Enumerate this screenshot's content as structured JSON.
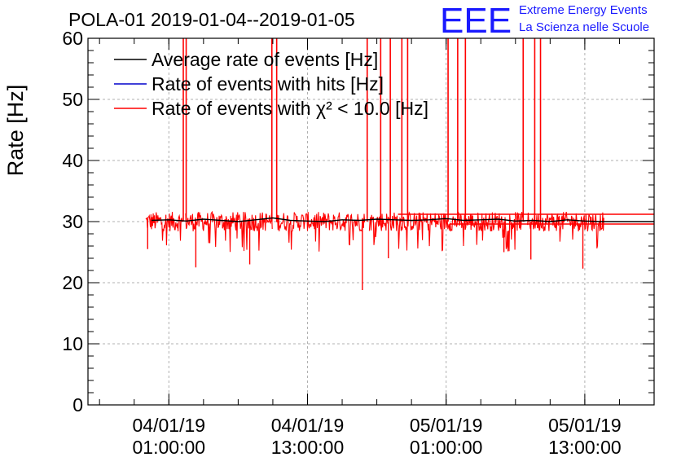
{
  "chart_data": {
    "type": "line",
    "title": "POLA-01 2019-01-04--2019-01-05",
    "ylabel": "Rate [Hz]",
    "xlabel": "",
    "ylim": [
      0,
      60
    ],
    "yticks": [
      "0",
      "10",
      "20",
      "30",
      "40",
      "50",
      "60"
    ],
    "xticks": [
      {
        "value": "2019-01-04T01:00:00",
        "line1": "04/01/19",
        "line2": "01:00:00"
      },
      {
        "value": "2019-01-04T13:00:00",
        "line1": "04/01/19",
        "line2": "13:00:00"
      },
      {
        "value": "2019-01-05T01:00:00",
        "line1": "05/01/19",
        "line2": "01:00:00"
      },
      {
        "value": "2019-01-05T13:00:00",
        "line1": "05/01/19",
        "line2": "13:00:00"
      }
    ],
    "xlim": [
      "2019-01-03T18:00:00",
      "2019-01-05T19:00:00"
    ],
    "grid": true,
    "legend_position": "top-left",
    "series": [
      {
        "name": "Average rate of events [Hz]",
        "color": "#000000",
        "points": [
          [
            "2019-01-03T23:30:00",
            30.2
          ],
          [
            "2019-01-04T01:00:00",
            30.3
          ],
          [
            "2019-01-04T02:30:00",
            30.1
          ],
          [
            "2019-01-04T04:00:00",
            30.4
          ],
          [
            "2019-01-04T05:30:00",
            30.2
          ],
          [
            "2019-01-04T07:00:00",
            30.0
          ],
          [
            "2019-01-04T08:30:00",
            30.3
          ],
          [
            "2019-01-04T10:00:00",
            30.6
          ],
          [
            "2019-01-04T11:30:00",
            30.2
          ],
          [
            "2019-01-04T13:00:00",
            30.1
          ],
          [
            "2019-01-04T14:30:00",
            30.0
          ],
          [
            "2019-01-04T16:00:00",
            30.3
          ],
          [
            "2019-01-04T17:30:00",
            30.2
          ],
          [
            "2019-01-04T19:00:00",
            30.4
          ],
          [
            "2019-01-04T20:30:00",
            30.3
          ],
          [
            "2019-01-04T22:00:00",
            30.2
          ],
          [
            "2019-01-04T23:30:00",
            30.3
          ],
          [
            "2019-01-05T01:00:00",
            30.5
          ],
          [
            "2019-01-05T02:30:00",
            30.2
          ],
          [
            "2019-01-05T04:00:00",
            30.3
          ],
          [
            "2019-01-05T05:30:00",
            30.4
          ],
          [
            "2019-01-05T07:00:00",
            30.1
          ],
          [
            "2019-01-05T08:30:00",
            30.2
          ],
          [
            "2019-01-05T10:00:00",
            30.0
          ],
          [
            "2019-01-05T11:30:00",
            30.3
          ],
          [
            "2019-01-05T13:00:00",
            30.1
          ],
          [
            "2019-01-05T14:30:00",
            30.0
          ],
          [
            "2019-01-05T19:00:00",
            30.0
          ]
        ]
      },
      {
        "name": "Rate of events with hits [Hz]",
        "color": "#0000cc",
        "points": []
      },
      {
        "name": "Rate of events with χ² < 10.0 [Hz]",
        "color": "#ff0000",
        "baseline": 30.0,
        "noise": 1.6,
        "start": "2019-01-03T23:00:00",
        "end": "2019-01-05T14:40:00",
        "gaps": [
          [
            "2019-01-04T02:10:00",
            "2019-01-04T02:25:00"
          ],
          [
            "2019-01-04T10:00:00",
            "2019-01-04T10:15:00"
          ],
          [
            "2019-01-04T18:00:00",
            "2019-01-04T18:20:00"
          ],
          [
            "2019-01-05T07:40:00",
            "2019-01-05T08:00:00"
          ]
        ],
        "dips": [
          [
            "2019-01-03T23:10:00",
            25.5
          ],
          [
            "2019-01-04T03:20:00",
            22.5
          ],
          [
            "2019-01-04T08:00:00",
            23.0
          ],
          [
            "2019-01-04T17:45:00",
            18.8
          ],
          [
            "2019-01-04T20:00:00",
            24.0
          ],
          [
            "2019-01-05T06:00:00",
            25.0
          ],
          [
            "2019-01-05T08:20:00",
            23.8
          ],
          [
            "2019-01-05T12:50:00",
            22.3
          ]
        ],
        "spikes": [
          "2019-01-04T02:15:00",
          "2019-01-04T02:30:00",
          "2019-01-04T09:55:00",
          "2019-01-04T10:20:00",
          "2019-01-04T18:10:00",
          "2019-01-04T19:20:00",
          "2019-01-04T20:10:00",
          "2019-01-04T21:10:00",
          "2019-01-04T21:40:00",
          "2019-01-05T01:10:00",
          "2019-01-05T02:00:00",
          "2019-01-05T02:40:00",
          "2019-01-05T07:40:00",
          "2019-01-05T08:40:00",
          "2019-01-05T09:10:00"
        ],
        "offsets": [
          [
            "2019-01-04T20:50:00",
            "2019-01-05T19:00:00",
            31.2
          ],
          [
            "2019-01-05T01:20:00",
            "2019-01-05T19:00:00",
            29.6
          ]
        ]
      }
    ]
  },
  "logo": {
    "mark": "EEE",
    "line1": "Extreme Energy Events",
    "line2": "La Scienza nelle Scuole",
    "color": "#1a1aff"
  }
}
